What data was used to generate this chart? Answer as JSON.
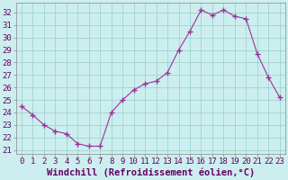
{
  "x": [
    0,
    1,
    2,
    3,
    4,
    5,
    6,
    7,
    8,
    9,
    10,
    11,
    12,
    13,
    14,
    15,
    16,
    17,
    18,
    19,
    20,
    21,
    22,
    23
  ],
  "y": [
    24.5,
    23.8,
    23.0,
    22.5,
    22.3,
    21.5,
    21.3,
    21.3,
    24.0,
    25.0,
    25.8,
    26.3,
    26.5,
    27.2,
    29.0,
    30.5,
    32.2,
    31.8,
    32.2,
    31.7,
    31.5,
    28.7,
    26.8,
    25.2
  ],
  "line_color": "#993399",
  "marker": "+",
  "marker_size": 4,
  "marker_lw": 1.0,
  "line_width": 0.8,
  "background_color": "#cceeee",
  "grid_color": "#99cccc",
  "xlabel": "Windchill (Refroidissement éolien,°C)",
  "ylabel_ticks": [
    21,
    22,
    23,
    24,
    25,
    26,
    27,
    28,
    29,
    30,
    31,
    32
  ],
  "xlim": [
    -0.5,
    23.5
  ],
  "ylim": [
    20.7,
    32.8
  ],
  "xlabel_fontsize": 7.5,
  "tick_fontsize": 6.5,
  "label_color": "#660066",
  "spine_color": "#888888"
}
